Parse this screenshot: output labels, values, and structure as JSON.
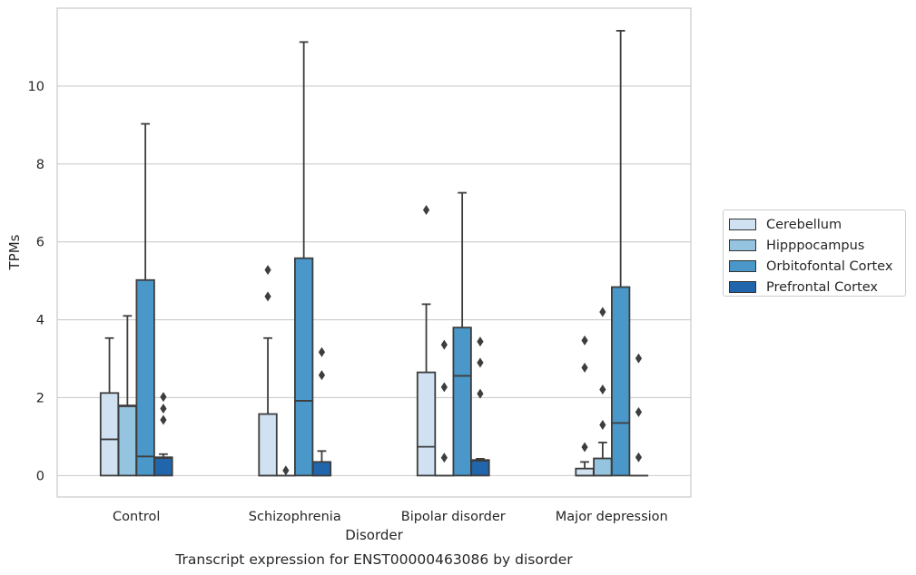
{
  "caption": "Transcript expression for ENST00000463086 by disorder",
  "chart_data": {
    "type": "box",
    "xlabel": "Disorder",
    "ylabel": "TPMs",
    "ylim": [
      -0.55,
      12.0
    ],
    "yticks": [
      0,
      2,
      4,
      6,
      8,
      10
    ],
    "grid": "horizontal",
    "legend_position": "right",
    "categories": [
      "Control",
      "Schizophrenia",
      "Bipolar disorder",
      "Major depression"
    ],
    "series": [
      {
        "name": "Cerebellum",
        "color": "#d0e1f2",
        "boxes": [
          {
            "whisker_low": 0,
            "q1": 0,
            "median": 0.93,
            "q3": 2.12,
            "whisker_high": 3.53,
            "outliers": []
          },
          {
            "whisker_low": 0,
            "q1": 0,
            "median": 0,
            "q3": 1.58,
            "whisker_high": 3.53,
            "outliers": [
              4.6,
              5.28
            ]
          },
          {
            "whisker_low": 0,
            "q1": 0,
            "median": 0.74,
            "q3": 2.65,
            "whisker_high": 4.4,
            "outliers": [
              6.82
            ]
          },
          {
            "whisker_low": 0,
            "q1": 0,
            "median": 0,
            "q3": 0.18,
            "whisker_high": 0.35,
            "outliers": [
              0.73,
              2.77,
              3.47
            ]
          }
        ]
      },
      {
        "name": "Hipppocampus",
        "color": "#94c4df",
        "boxes": [
          {
            "whisker_low": 0,
            "q1": 0,
            "median": 1.78,
            "q3": 1.8,
            "whisker_high": 4.1,
            "outliers": []
          },
          {
            "whisker_low": 0,
            "q1": 0,
            "median": 0,
            "q3": 0,
            "whisker_high": 0,
            "outliers": [
              0.13
            ]
          },
          {
            "whisker_low": 0,
            "q1": 0,
            "median": 0,
            "q3": 0,
            "whisker_high": 0,
            "outliers": [
              0.46,
              2.27,
              3.36
            ]
          },
          {
            "whisker_low": 0,
            "q1": 0,
            "median": 0,
            "q3": 0.44,
            "whisker_high": 0.85,
            "outliers": [
              1.3,
              2.21,
              4.2
            ]
          }
        ]
      },
      {
        "name": "Orbitofontal Cortex",
        "color": "#4a98c9",
        "boxes": [
          {
            "whisker_low": 0,
            "q1": 0,
            "median": 0.49,
            "q3": 5.02,
            "whisker_high": 9.03,
            "outliers": []
          },
          {
            "whisker_low": 0,
            "q1": 0,
            "median": 1.92,
            "q3": 5.58,
            "whisker_high": 11.13,
            "outliers": []
          },
          {
            "whisker_low": 0,
            "q1": 0,
            "median": 2.56,
            "q3": 3.8,
            "whisker_high": 7.26,
            "outliers": []
          },
          {
            "whisker_low": 0,
            "q1": 0,
            "median": 1.35,
            "q3": 4.84,
            "whisker_high": 11.42,
            "outliers": []
          }
        ]
      },
      {
        "name": "Prefrontal Cortex",
        "color": "#2166ac",
        "boxes": [
          {
            "whisker_low": 0,
            "q1": 0,
            "median": 0.45,
            "q3": 0.47,
            "whisker_high": 0.55,
            "outliers": [
              1.43,
              1.72,
              2.02
            ]
          },
          {
            "whisker_low": 0,
            "q1": 0,
            "median": 0,
            "q3": 0.35,
            "whisker_high": 0.63,
            "outliers": [
              2.58,
              3.17
            ]
          },
          {
            "whisker_low": 0,
            "q1": 0,
            "median": 0.38,
            "q3": 0.4,
            "whisker_high": 0.43,
            "outliers": [
              2.1,
              2.9,
              3.44
            ]
          },
          {
            "whisker_low": 0,
            "q1": 0,
            "median": 0,
            "q3": 0,
            "whisker_high": 0,
            "outliers": [
              0.47,
              1.63,
              3.01
            ]
          }
        ]
      }
    ]
  }
}
